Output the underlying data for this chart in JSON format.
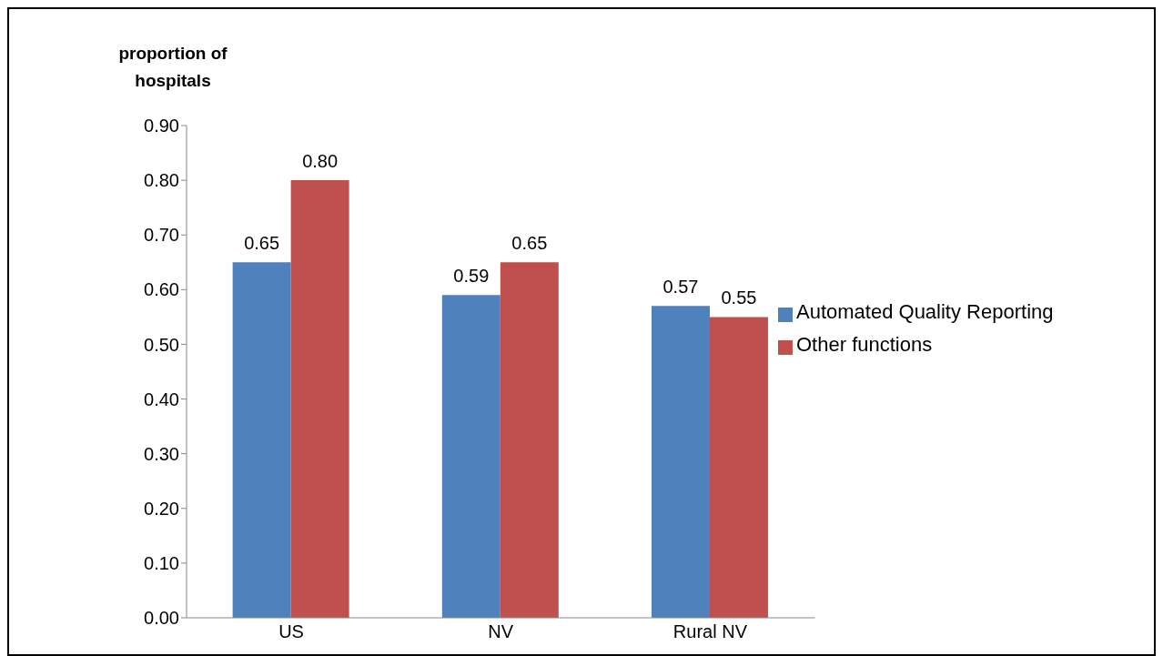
{
  "chart_data": {
    "type": "bar",
    "ylabel": "proportion of hospitals",
    "categories": [
      "US",
      "NV",
      "Rural NV"
    ],
    "series": [
      {
        "name": "Automated Quality Reporting",
        "color": "#4f81bd",
        "values": [
          0.65,
          0.59,
          0.57
        ],
        "value_labels": [
          "0.65",
          "0.59",
          "0.57"
        ]
      },
      {
        "name": "Other functions",
        "color": "#c0504d",
        "values": [
          0.8,
          0.65,
          0.55
        ],
        "value_labels": [
          "0.80",
          "0.65",
          "0.55"
        ]
      }
    ],
    "ylim": [
      0,
      0.9
    ],
    "yticks": [
      {
        "value": 0,
        "label": "0.00"
      },
      {
        "value": 0.1,
        "label": "0.10"
      },
      {
        "value": 0.2,
        "label": "0.20"
      },
      {
        "value": 0.3,
        "label": "0.30"
      },
      {
        "value": 0.4,
        "label": "0.40"
      },
      {
        "value": 0.5,
        "label": "0.50"
      },
      {
        "value": 0.6,
        "label": "0.60"
      },
      {
        "value": 0.7,
        "label": "0.70"
      },
      {
        "value": 0.8,
        "label": "0.80"
      },
      {
        "value": 0.9,
        "label": "0.90"
      }
    ],
    "grid": false,
    "legend": "right"
  }
}
